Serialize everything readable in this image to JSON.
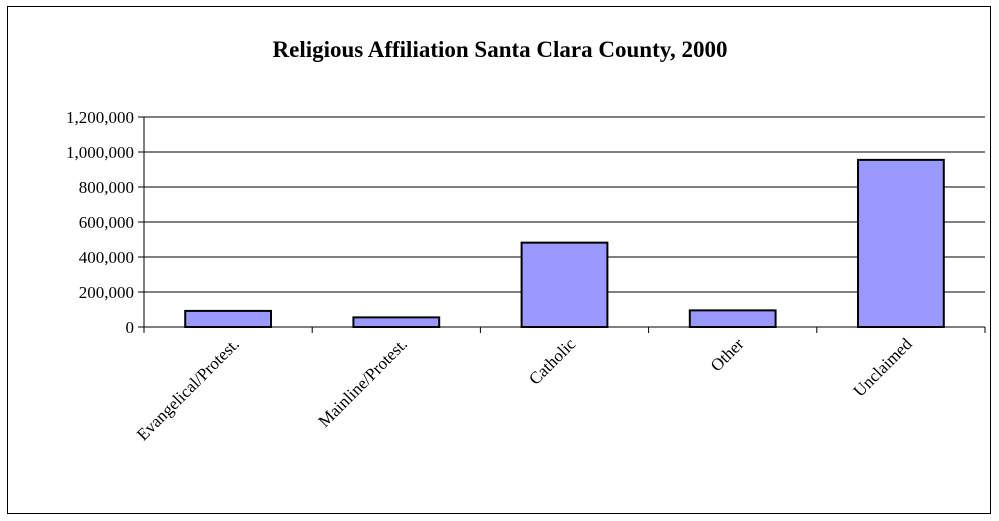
{
  "chart_data": {
    "type": "bar",
    "title": "Religious Affiliation Santa Clara County, 2000",
    "categories": [
      "Evangelical/Protest.",
      "Mainline/Protest.",
      "Catholic",
      "Other",
      "Unclaimed"
    ],
    "values": [
      92000,
      55000,
      482000,
      95000,
      955000
    ],
    "xlabel": "",
    "ylabel": "",
    "ylim": [
      0,
      1200000
    ],
    "yticks": [
      "0",
      "200,000",
      "400,000",
      "600,000",
      "800,000",
      "1,000,000",
      "1,200,000"
    ],
    "grid": "horizontal",
    "legend": "none",
    "colors": {
      "bar_fill": "#9999ff",
      "bar_stroke": "#000000",
      "gridline": "#000000"
    }
  }
}
